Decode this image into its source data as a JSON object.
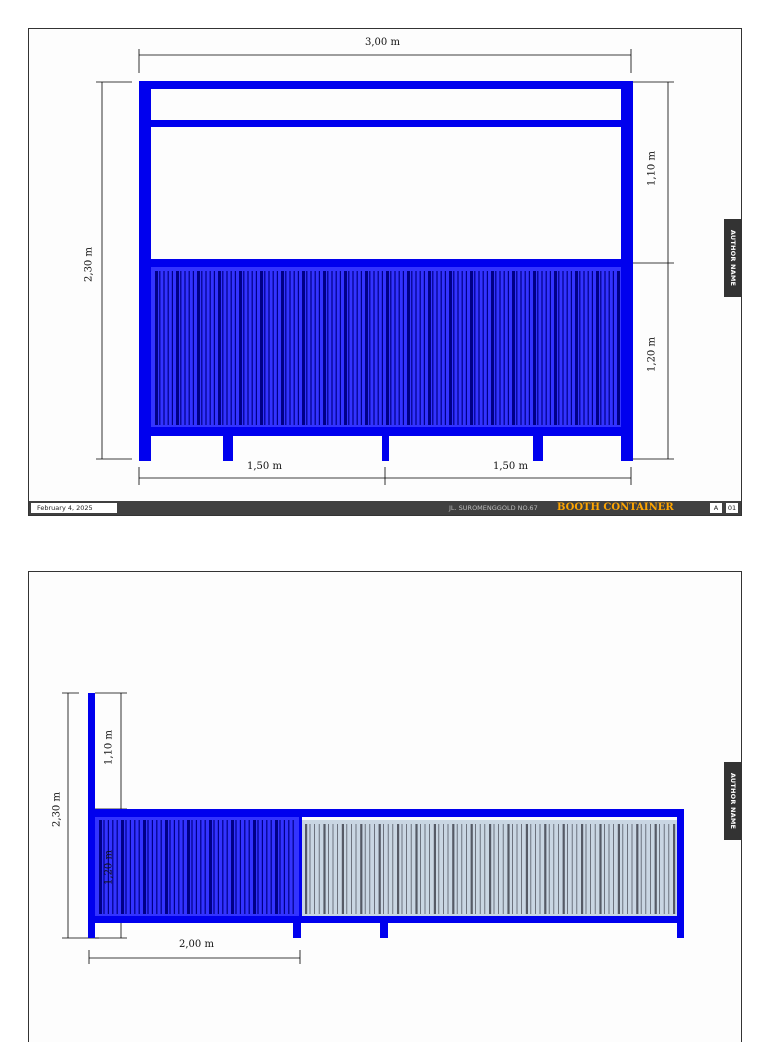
{
  "sheet1": {
    "dimensions": {
      "overall_width": "3,00 m",
      "overall_height": "2,30 m",
      "upper_height": "1,10 m",
      "lower_height": "1,20 m",
      "left_half": "1,50 m",
      "right_half": "1,50 m"
    },
    "author_tab": "AUTHOR NAME",
    "title_block": {
      "date": "February 4, 2025",
      "address": "JL. SUROMENGGOLD NO.67",
      "title": "BOOTH CONTAINER",
      "size": "A",
      "sheet_no": "01"
    }
  },
  "sheet2": {
    "dimensions": {
      "overall_height": "2,30 m",
      "upper_height": "1,10 m",
      "lower_height": "1,20 m",
      "depth": "2,00 m"
    },
    "author_tab": "AUTHOR NAME"
  },
  "colors": {
    "frame": "#0000ee",
    "panel_fill": "#3333ff",
    "rib_dark": "#000088",
    "glass": "#c9d6e3",
    "title_accent": "#ffa500"
  }
}
